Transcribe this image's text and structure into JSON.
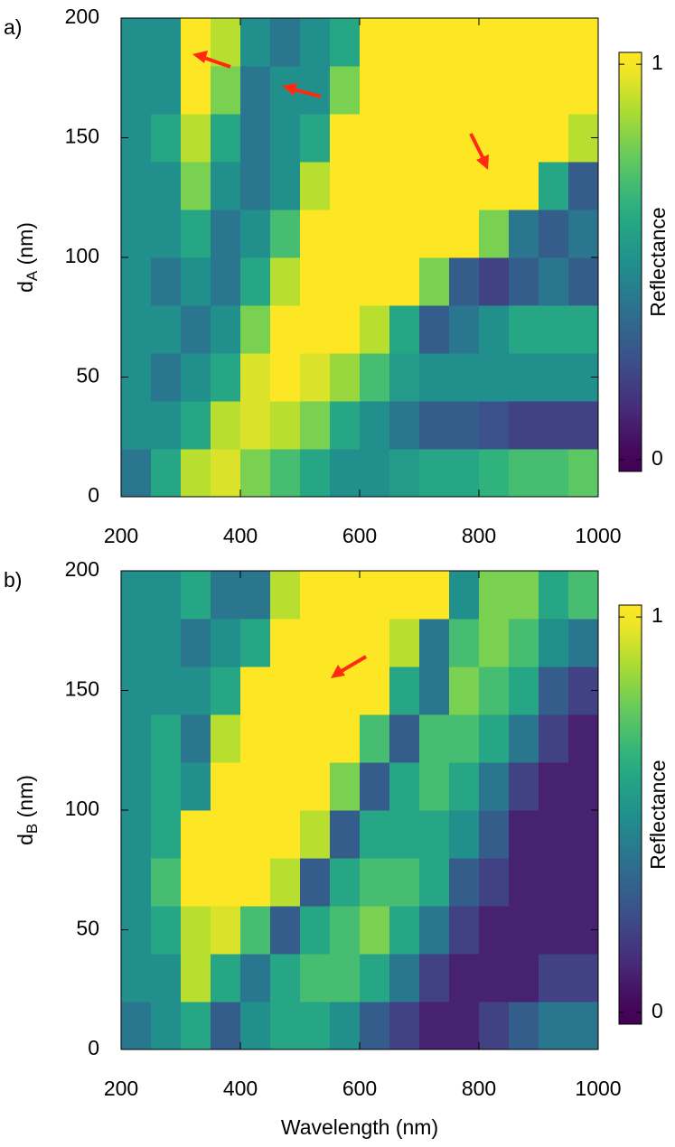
{
  "chart_data": [
    {
      "type": "heatmap",
      "panel_label": "a)",
      "ylabel": {
        "text": "d",
        "subscript": "A",
        "suffix": " (nm)"
      },
      "colorbar_label": "Reflectance",
      "colormap": "viridis",
      "xbins": [
        200,
        250,
        300,
        350,
        400,
        450,
        500,
        550,
        600,
        650,
        700,
        750,
        800,
        850,
        900,
        950,
        1000
      ],
      "ybins": [
        0,
        20,
        40,
        60,
        80,
        100,
        120,
        140,
        160,
        180,
        200
      ],
      "z": [
        [
          0.4,
          0.6,
          0.9,
          0.95,
          0.8,
          0.7,
          0.6,
          0.5,
          0.5,
          0.55,
          0.6,
          0.6,
          0.65,
          0.7,
          0.7,
          0.75
        ],
        [
          0.5,
          0.5,
          0.6,
          0.9,
          0.95,
          0.9,
          0.8,
          0.6,
          0.5,
          0.4,
          0.3,
          0.3,
          0.25,
          0.2,
          0.2,
          0.2
        ],
        [
          0.5,
          0.4,
          0.5,
          0.6,
          0.95,
          1,
          0.95,
          0.85,
          0.7,
          0.55,
          0.5,
          0.5,
          0.5,
          0.5,
          0.5,
          0.5
        ],
        [
          0.5,
          0.5,
          0.4,
          0.5,
          0.8,
          1,
          1,
          1,
          0.9,
          0.6,
          0.3,
          0.4,
          0.5,
          0.6,
          0.6,
          0.6
        ],
        [
          0.5,
          0.4,
          0.5,
          0.4,
          0.6,
          0.9,
          1,
          1,
          1,
          1,
          0.8,
          0.3,
          0.2,
          0.3,
          0.4,
          0.3
        ],
        [
          0.5,
          0.5,
          0.6,
          0.4,
          0.5,
          0.7,
          1,
          1,
          1,
          1,
          1,
          1,
          0.8,
          0.4,
          0.3,
          0.4
        ],
        [
          0.5,
          0.5,
          0.8,
          0.5,
          0.4,
          0.5,
          0.9,
          1,
          1,
          1,
          1,
          1,
          1,
          1,
          0.6,
          0.3
        ],
        [
          0.5,
          0.6,
          0.9,
          0.6,
          0.4,
          0.5,
          0.6,
          1,
          1,
          1,
          1,
          1,
          1,
          1,
          1,
          0.9
        ],
        [
          0.5,
          0.5,
          1,
          0.8,
          0.4,
          0.5,
          0.5,
          0.8,
          1,
          1,
          1,
          1,
          1,
          1,
          1,
          1
        ],
        [
          0.5,
          0.5,
          1,
          0.9,
          0.5,
          0.4,
          0.5,
          0.6,
          1,
          1,
          1,
          1,
          1,
          1,
          1,
          1
        ]
      ],
      "xlim": [
        200,
        1000
      ],
      "xticks": [
        200,
        400,
        600,
        800,
        1000
      ],
      "ylim": [
        0,
        200
      ],
      "yticks": [
        0,
        50,
        100,
        150,
        200
      ],
      "zlim": [
        -0.03,
        1.03
      ],
      "zticks": [
        0,
        1
      ]
    },
    {
      "type": "heatmap",
      "panel_label": "b)",
      "ylabel": {
        "text": "d",
        "subscript": "B",
        "suffix": " (nm)"
      },
      "xlabel": "Wavelength (nm)",
      "colorbar_label": "Reflectance",
      "colormap": "viridis",
      "xbins": [
        200,
        250,
        300,
        350,
        400,
        450,
        500,
        550,
        600,
        650,
        700,
        750,
        800,
        850,
        900,
        950,
        1000
      ],
      "ybins": [
        0,
        20,
        40,
        60,
        80,
        100,
        120,
        140,
        160,
        180,
        200
      ],
      "z": [
        [
          0.4,
          0.5,
          0.6,
          0.3,
          0.5,
          0.6,
          0.6,
          0.5,
          0.3,
          0.2,
          0.1,
          0.1,
          0.2,
          0.3,
          0.4,
          0.4
        ],
        [
          0.5,
          0.5,
          0.9,
          0.6,
          0.4,
          0.6,
          0.7,
          0.7,
          0.6,
          0.4,
          0.2,
          0.1,
          0.1,
          0.1,
          0.2,
          0.2
        ],
        [
          0.5,
          0.6,
          0.9,
          0.95,
          0.7,
          0.3,
          0.6,
          0.7,
          0.8,
          0.6,
          0.4,
          0.2,
          0.1,
          0.1,
          0.1,
          0.1
        ],
        [
          0.5,
          0.7,
          1,
          1,
          1,
          0.9,
          0.3,
          0.6,
          0.7,
          0.7,
          0.6,
          0.3,
          0.2,
          0.1,
          0.1,
          0.1
        ],
        [
          0.5,
          0.6,
          1,
          1,
          1,
          1,
          0.9,
          0.3,
          0.6,
          0.6,
          0.6,
          0.5,
          0.3,
          0.1,
          0.1,
          0.1
        ],
        [
          0.5,
          0.6,
          0.5,
          1,
          1,
          1,
          1,
          0.8,
          0.3,
          0.6,
          0.7,
          0.6,
          0.4,
          0.2,
          0.1,
          0.1
        ],
        [
          0.5,
          0.6,
          0.4,
          0.9,
          1,
          1,
          1,
          1,
          0.7,
          0.3,
          0.7,
          0.7,
          0.6,
          0.4,
          0.2,
          0.1
        ],
        [
          0.5,
          0.5,
          0.5,
          0.6,
          1,
          1,
          1,
          1,
          1,
          0.6,
          0.4,
          0.8,
          0.7,
          0.6,
          0.3,
          0.2
        ],
        [
          0.5,
          0.5,
          0.4,
          0.5,
          0.6,
          1,
          1,
          1,
          1,
          0.9,
          0.4,
          0.7,
          0.8,
          0.7,
          0.5,
          0.4
        ],
        [
          0.5,
          0.5,
          0.6,
          0.4,
          0.4,
          0.9,
          1,
          1,
          1,
          1,
          1,
          0.5,
          0.8,
          0.8,
          0.6,
          0.7
        ]
      ],
      "xlim": [
        200,
        1000
      ],
      "xticks": [
        200,
        400,
        600,
        800,
        1000
      ],
      "ylim": [
        0,
        200
      ],
      "yticks": [
        0,
        50,
        100,
        150,
        200
      ],
      "zlim": [
        -0.03,
        1.03
      ],
      "zticks": [
        0,
        1
      ]
    }
  ]
}
